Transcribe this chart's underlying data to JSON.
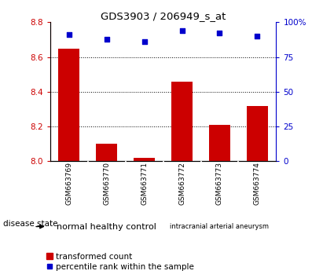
{
  "title": "GDS3903 / 206949_s_at",
  "samples": [
    "GSM663769",
    "GSM663770",
    "GSM663771",
    "GSM663772",
    "GSM663773",
    "GSM663774"
  ],
  "transformed_count": [
    8.65,
    8.1,
    8.02,
    8.46,
    8.21,
    8.32
  ],
  "percentile_rank": [
    91,
    88,
    86,
    94,
    92,
    90
  ],
  "ylim_left": [
    8.0,
    8.8
  ],
  "ylim_right": [
    0,
    100
  ],
  "yticks_left": [
    8.0,
    8.2,
    8.4,
    8.6,
    8.8
  ],
  "yticks_right": [
    0,
    25,
    50,
    75,
    100
  ],
  "yticklabels_right": [
    "0",
    "25",
    "50",
    "75",
    "100%"
  ],
  "bar_color": "#cc0000",
  "dot_color": "#0000cc",
  "group_labels": [
    "normal healthy control",
    "intracranial arterial aneurysm"
  ],
  "group_split": 3,
  "disease_state_label": "disease state",
  "legend_bar_label": "transformed count",
  "legend_dot_label": "percentile rank within the sample",
  "plot_bg_color": "#ffffff",
  "tick_area_bg": "#c8c8c8",
  "group_area_bg": "#90ee90",
  "grid_yticks": [
    8.2,
    8.4,
    8.6
  ]
}
